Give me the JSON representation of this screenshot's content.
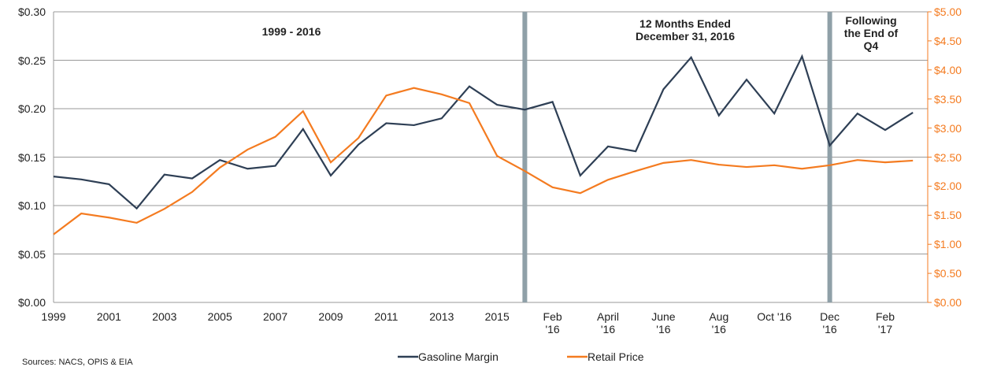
{
  "chart_data": {
    "type": "line",
    "annotations": [
      "1999 - 2016",
      "12 Months Ended December 31, 2016",
      "Following the End of Q4"
    ],
    "source": "Sources:  NACS, OPIS & EIA",
    "categories": [
      "1999",
      null,
      "2001",
      null,
      "2003",
      null,
      "2005",
      null,
      "2007",
      null,
      "2009",
      null,
      "2011",
      null,
      "2013",
      null,
      "2015",
      null,
      "Feb '16",
      null,
      "April '16",
      null,
      "June '16",
      null,
      "Aug '16",
      null,
      "Oct '16",
      null,
      "Dec '16",
      null,
      "Feb '17",
      null
    ],
    "series": [
      {
        "name": "Gasoline Margin",
        "color": "#2e3f55",
        "values": [
          0.13,
          0.127,
          0.122,
          0.097,
          0.132,
          0.128,
          0.147,
          0.138,
          0.141,
          0.179,
          0.131,
          0.163,
          0.185,
          0.183,
          0.19,
          0.223,
          0.204,
          0.199,
          0.207,
          0.131,
          0.161,
          0.156,
          0.22,
          0.253,
          0.193,
          0.23,
          0.195,
          0.254,
          0.162,
          0.195,
          0.178,
          0.196
        ]
      },
      {
        "name": "Retail Price",
        "color": "#f47b20",
        "axis": "y2",
        "values": [
          1.17,
          1.53,
          1.46,
          1.37,
          1.61,
          1.9,
          2.32,
          2.63,
          2.85,
          3.29,
          2.41,
          2.83,
          3.56,
          3.69,
          3.58,
          3.43,
          2.52,
          2.26,
          1.98,
          1.88,
          2.11,
          2.26,
          2.4,
          2.45,
          2.37,
          2.33,
          2.36,
          2.3,
          2.36,
          2.45,
          2.41,
          2.44
        ]
      }
    ],
    "ylim": [
      0,
      0.3
    ],
    "yticks": [
      {
        "value": 0,
        "label": "$0.00"
      },
      {
        "value": 0.05,
        "label": "$0.05"
      },
      {
        "value": 0.1,
        "label": "$0.10"
      },
      {
        "value": 0.15,
        "label": "$0.15"
      },
      {
        "value": 0.2,
        "label": "$0.20"
      },
      {
        "value": 0.25,
        "label": "$0.25"
      },
      {
        "value": 0.3,
        "label": "$0.30"
      }
    ],
    "y2lim": [
      0,
      5
    ],
    "y2ticks": [
      {
        "value": 0,
        "label": "$0.00"
      },
      {
        "value": 0.5,
        "label": "$0.50"
      },
      {
        "value": 1,
        "label": "$1.00"
      },
      {
        "value": 1.5,
        "label": "$1.50"
      },
      {
        "value": 2,
        "label": "$2.00"
      },
      {
        "value": 2.5,
        "label": "$2.50"
      },
      {
        "value": 3,
        "label": "$3.00"
      },
      {
        "value": 3.5,
        "label": "$3.50"
      },
      {
        "value": 4,
        "label": "$4.00"
      },
      {
        "value": 4.5,
        "label": "$4.50"
      },
      {
        "value": 5,
        "label": "$5.00"
      }
    ],
    "grid": true
  }
}
